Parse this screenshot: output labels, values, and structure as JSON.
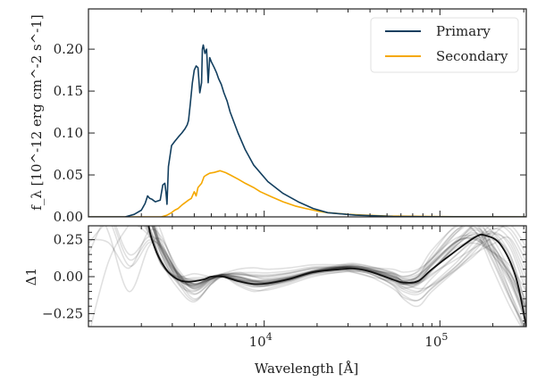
{
  "chart_data": [
    {
      "type": "line",
      "panel": "top",
      "title": "",
      "xlabel": "",
      "ylabel": "f_λ  [10^-12 erg cm^-2 s^-1]",
      "xscale": "log",
      "xlim": [
        1000,
        310000
      ],
      "ylim": [
        0,
        0.248
      ],
      "yticks": [
        0.0,
        0.05,
        0.1,
        0.15,
        0.2
      ],
      "ytick_labels": [
        "0.00",
        "0.05",
        "0.10",
        "0.15",
        "0.20"
      ],
      "legend": {
        "position": "top-right",
        "entries": [
          "Primary",
          "Secondary"
        ]
      },
      "series": [
        {
          "name": "Primary",
          "color": "#133f5f",
          "x": [
            1000,
            1620,
            1820,
            2000,
            2100,
            2170,
            2230,
            2300,
            2400,
            2560,
            2650,
            2720,
            2760,
            2800,
            2850,
            2970,
            3100,
            3240,
            3400,
            3540,
            3650,
            3710,
            3800,
            3900,
            4000,
            4100,
            4200,
            4300,
            4400,
            4450,
            4500,
            4600,
            4700,
            4800,
            4900,
            5000,
            5200,
            5350,
            5500,
            5700,
            5900,
            6150,
            6400,
            7100,
            7800,
            8700,
            10500,
            12800,
            15600,
            19000,
            23000,
            33000,
            54000,
            100000,
            310000
          ],
          "y": [
            0.0,
            0.0,
            0.003,
            0.008,
            0.016,
            0.025,
            0.022,
            0.021,
            0.018,
            0.02,
            0.038,
            0.04,
            0.03,
            0.015,
            0.06,
            0.085,
            0.09,
            0.095,
            0.1,
            0.105,
            0.11,
            0.115,
            0.135,
            0.16,
            0.175,
            0.18,
            0.178,
            0.148,
            0.16,
            0.2,
            0.205,
            0.195,
            0.2,
            0.16,
            0.19,
            0.185,
            0.178,
            0.172,
            0.165,
            0.158,
            0.148,
            0.138,
            0.125,
            0.1,
            0.08,
            0.062,
            0.042,
            0.028,
            0.018,
            0.01,
            0.005,
            0.002,
            0.0005,
            0.0001,
            0.0
          ]
        },
        {
          "name": "Secondary",
          "color": "#f5a800",
          "x": [
            1000,
            2600,
            2800,
            2970,
            3100,
            3240,
            3400,
            3710,
            3850,
            4000,
            4100,
            4200,
            4400,
            4550,
            4700,
            4900,
            5200,
            5600,
            6000,
            6400,
            7100,
            7800,
            8700,
            9500,
            11000,
            12800,
            15000,
            17200,
            20000,
            23000,
            30000,
            37000,
            50000,
            100000,
            310000
          ],
          "y": [
            0.0,
            0.0,
            0.002,
            0.005,
            0.008,
            0.01,
            0.014,
            0.02,
            0.022,
            0.03,
            0.025,
            0.035,
            0.04,
            0.048,
            0.05,
            0.052,
            0.053,
            0.055,
            0.053,
            0.05,
            0.045,
            0.04,
            0.035,
            0.03,
            0.024,
            0.018,
            0.013,
            0.01,
            0.007,
            0.005,
            0.003,
            0.002,
            0.001,
            0.0003,
            0.0
          ]
        }
      ]
    },
    {
      "type": "line",
      "panel": "bottom",
      "title": "",
      "xlabel": "Wavelength [Å]",
      "ylabel": "Δ1",
      "xscale": "log",
      "xlim": [
        1000,
        310000
      ],
      "ylim": [
        -0.338,
        0.344
      ],
      "xticks": [
        10000,
        100000
      ],
      "xtick_labels": [
        "10^4",
        "10^5"
      ],
      "yticks": [
        -0.25,
        0.0,
        0.25
      ],
      "ytick_labels": [
        "−0.25",
        "0.00",
        "0.25"
      ],
      "series": [
        {
          "name": "median",
          "color": "#111111",
          "x": [
            2100,
            2200,
            2300,
            2450,
            2600,
            2850,
            3240,
            3700,
            4500,
            5000,
            5800,
            7100,
            8700,
            10500,
            14000,
            19000,
            27000,
            32000,
            40000,
            54000,
            62000,
            75000,
            90000,
            125000,
            160000,
            180000,
            220000,
            270000,
            310000
          ],
          "y": [
            0.6,
            0.35,
            0.25,
            0.16,
            0.1,
            0.03,
            -0.02,
            -0.035,
            -0.02,
            0.0,
            0.0,
            -0.03,
            -0.05,
            -0.045,
            -0.015,
            0.03,
            0.05,
            0.055,
            0.035,
            -0.02,
            -0.04,
            -0.03,
            0.05,
            0.18,
            0.27,
            0.28,
            0.22,
            0.0,
            -0.34
          ]
        }
      ],
      "samples": {
        "color": "#000000",
        "opacity": 0.12,
        "x": [
          1000,
          1300,
          1700,
          2200,
          2600,
          3240,
          4000,
          5000,
          5800,
          7100,
          8700,
          10500,
          14000,
          19000,
          27000,
          32000,
          40000,
          54000,
          62000,
          75000,
          90000,
          125000,
          160000,
          200000,
          250000,
          310000
        ],
        "curves": [
          [
            0.9,
            0.7,
            0.55,
            0.45,
            0.2,
            0.02,
            -0.02,
            0.0,
            0.01,
            -0.01,
            -0.03,
            -0.03,
            -0.01,
            0.03,
            0.06,
            0.06,
            0.04,
            0.0,
            -0.02,
            -0.01,
            0.08,
            0.25,
            0.35,
            0.3,
            0.1,
            -0.3
          ],
          [
            0.95,
            0.8,
            0.62,
            0.4,
            0.15,
            -0.05,
            -0.1,
            -0.03,
            0.0,
            -0.04,
            -0.07,
            -0.06,
            -0.03,
            0.02,
            0.04,
            0.05,
            0.03,
            -0.04,
            -0.08,
            -0.05,
            0.02,
            0.12,
            0.2,
            0.25,
            0.15,
            -0.2
          ],
          [
            0.6,
            0.3,
            -0.1,
            0.2,
            0.25,
            0.05,
            -0.05,
            0.0,
            0.0,
            -0.02,
            -0.04,
            -0.05,
            -0.02,
            0.04,
            0.07,
            0.08,
            0.05,
            0.0,
            -0.03,
            0.0,
            0.1,
            0.3,
            0.4,
            0.2,
            -0.1,
            -0.4
          ],
          [
            -0.4,
            0.1,
            0.35,
            0.5,
            0.3,
            0.0,
            -0.15,
            -0.05,
            0.0,
            0.03,
            0.0,
            -0.02,
            0.0,
            0.03,
            0.05,
            0.04,
            0.02,
            -0.05,
            -0.1,
            -0.12,
            -0.05,
            0.1,
            0.25,
            0.35,
            0.3,
            0.1
          ],
          [
            0.7,
            0.75,
            0.5,
            0.35,
            0.1,
            -0.08,
            -0.17,
            -0.05,
            0.0,
            -0.06,
            -0.1,
            -0.08,
            -0.04,
            0.01,
            0.03,
            0.04,
            0.02,
            -0.06,
            -0.15,
            -0.2,
            -0.1,
            0.05,
            0.18,
            0.3,
            0.2,
            -0.1
          ],
          [
            1.0,
            0.85,
            0.55,
            0.3,
            0.08,
            0.0,
            0.02,
            0.0,
            0.02,
            0.05,
            0.06,
            0.05,
            0.06,
            0.08,
            0.08,
            0.07,
            0.06,
            0.05,
            0.03,
            0.05,
            0.12,
            0.3,
            0.35,
            0.15,
            -0.1,
            -0.35
          ],
          [
            0.8,
            0.6,
            0.4,
            0.28,
            0.12,
            -0.02,
            -0.06,
            0.0,
            0.01,
            -0.02,
            -0.03,
            -0.02,
            0.0,
            0.04,
            0.05,
            0.03,
            0.0,
            -0.03,
            -0.05,
            0.0,
            0.15,
            0.35,
            0.3,
            0.05,
            -0.2,
            -0.4
          ],
          [
            0.85,
            0.65,
            0.45,
            0.38,
            0.18,
            0.01,
            -0.08,
            -0.02,
            0.0,
            -0.03,
            -0.06,
            -0.06,
            -0.02,
            0.03,
            0.06,
            0.07,
            0.06,
            0.02,
            -0.04,
            -0.08,
            -0.06,
            0.05,
            0.15,
            0.28,
            0.35,
            0.2
          ],
          [
            0.5,
            0.55,
            0.48,
            0.42,
            0.22,
            0.03,
            -0.03,
            0.0,
            0.02,
            0.02,
            0.0,
            -0.01,
            0.01,
            0.04,
            0.08,
            0.09,
            0.07,
            0.03,
            0.0,
            0.04,
            0.18,
            0.34,
            0.3,
            0.1,
            -0.15,
            -0.35
          ],
          [
            0.9,
            0.72,
            0.52,
            0.33,
            0.09,
            -0.04,
            -0.12,
            -0.04,
            0.0,
            -0.05,
            -0.09,
            -0.09,
            -0.05,
            0.0,
            0.03,
            0.03,
            0.0,
            -0.08,
            -0.14,
            -0.16,
            -0.08,
            0.06,
            0.16,
            0.22,
            0.26,
            0.05
          ]
        ]
      }
    }
  ]
}
